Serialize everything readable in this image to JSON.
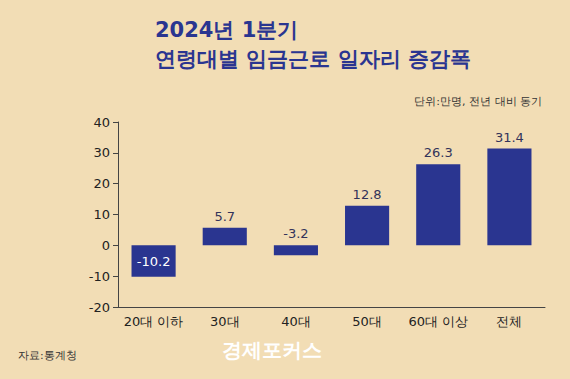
{
  "chart_data": {
    "type": "bar",
    "title": "2024년 1분기",
    "subtitle": "연령대별 임금근로 일자리 증감폭",
    "annotations": [
      "단위:만명, 전년 대비 동기",
      "자료:통계청",
      "경제포커스"
    ],
    "categories": [
      "20대 이하",
      "30대",
      "40대",
      "50대",
      "60대 이상",
      "전체"
    ],
    "values": [
      -10.2,
      5.7,
      -3.2,
      12.8,
      26.3,
      31.4
    ],
    "color": "#2a3590",
    "ylim": [
      -20,
      40
    ],
    "yticks": [
      -20,
      -10,
      0,
      10,
      20,
      30,
      40
    ],
    "grid": false,
    "data_labels": true
  }
}
